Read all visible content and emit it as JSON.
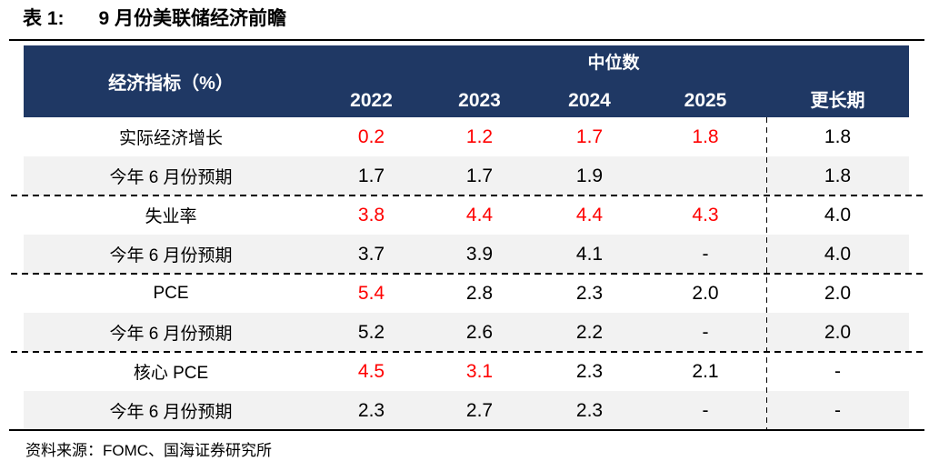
{
  "title": {
    "label": "表 1:",
    "text": "9 月份美联储经济前瞻"
  },
  "table": {
    "header": {
      "indicator_label": "经济指标（%）",
      "group_label": "中位数",
      "year_columns": [
        "2022",
        "2023",
        "2024",
        "2025"
      ],
      "longer_run_label": "更长期"
    },
    "rows": [
      {
        "label": "实际经济增长",
        "values": [
          "0.2",
          "1.2",
          "1.7",
          "1.8",
          "1.8"
        ],
        "red": [
          true,
          true,
          true,
          true,
          false
        ]
      },
      {
        "label": "今年 6 月份预期",
        "values": [
          "1.7",
          "1.7",
          "1.9",
          "",
          "1.8"
        ],
        "red": [
          false,
          false,
          false,
          false,
          false
        ]
      },
      {
        "label": "失业率",
        "values": [
          "3.8",
          "4.4",
          "4.4",
          "4.3",
          "4.0"
        ],
        "red": [
          true,
          true,
          true,
          true,
          false
        ]
      },
      {
        "label": "今年 6 月份预期",
        "values": [
          "3.7",
          "3.9",
          "4.1",
          "-",
          "4.0"
        ],
        "red": [
          false,
          false,
          false,
          false,
          false
        ]
      },
      {
        "label": "PCE",
        "values": [
          "5.4",
          "2.8",
          "2.3",
          "2.0",
          "2.0"
        ],
        "red": [
          true,
          false,
          false,
          false,
          false
        ]
      },
      {
        "label": "今年 6 月份预期",
        "values": [
          "5.2",
          "2.6",
          "2.2",
          "-",
          "2.0"
        ],
        "red": [
          false,
          false,
          false,
          false,
          false
        ]
      },
      {
        "label": "核心 PCE",
        "values": [
          "4.5",
          "3.1",
          "2.3",
          "2.1",
          "-"
        ],
        "red": [
          true,
          true,
          false,
          false,
          false
        ]
      },
      {
        "label": "今年 6 月份预期",
        "values": [
          "2.3",
          "2.7",
          "2.3",
          "-",
          "-"
        ],
        "red": [
          false,
          false,
          false,
          false,
          false
        ]
      }
    ]
  },
  "footer": {
    "source": "资料来源：FOMC、国海证券研究所"
  },
  "colors": {
    "header_bg": "#1F3864",
    "highlight": "#FF0000",
    "row_alt_bg": "#F2F2F2"
  }
}
